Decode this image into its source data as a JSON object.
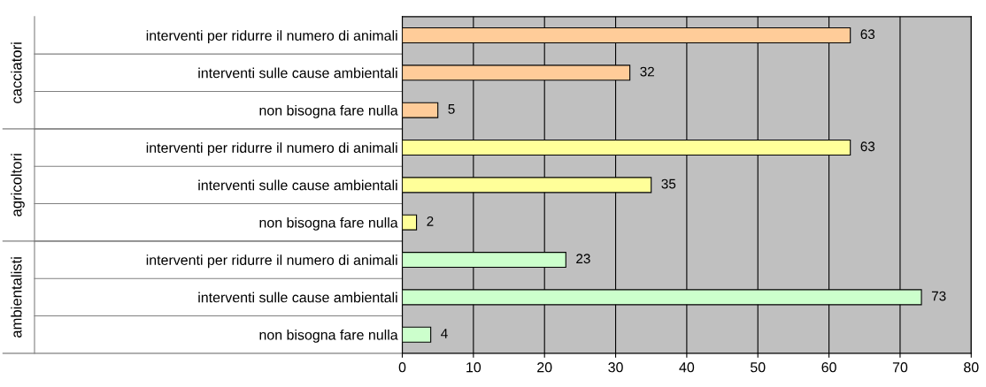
{
  "chart_data": {
    "type": "bar",
    "orientation": "horizontal",
    "categories": [
      "interventi per ridurre il numero di animali",
      "interventi sulle cause ambientali",
      "non bisogna fare nulla",
      "interventi per ridurre il numero di animali",
      "interventi sulle cause ambientali",
      "non bisogna fare nulla",
      "interventi per ridurre il numero di animali",
      "interventi sulle cause ambientali",
      "non bisogna fare nulla"
    ],
    "series": [
      {
        "color": "#ffcc99",
        "values": [
          63,
          32,
          5,
          null,
          null,
          null,
          null,
          null,
          null
        ]
      },
      {
        "color": "#ffff99",
        "values": [
          null,
          null,
          null,
          63,
          35,
          2,
          null,
          null,
          null
        ]
      },
      {
        "color": "#ccffcc",
        "values": [
          null,
          null,
          null,
          null,
          null,
          null,
          23,
          73,
          4
        ]
      }
    ],
    "xlim": [
      0,
      80
    ],
    "xticks": [
      0,
      10,
      20,
      30,
      40,
      50,
      60,
      70,
      80
    ],
    "annotations": [
      "cacciatori",
      "agricoltori",
      "ambientalisti"
    ],
    "grid": "x",
    "legend": false,
    "data_labels": true
  }
}
